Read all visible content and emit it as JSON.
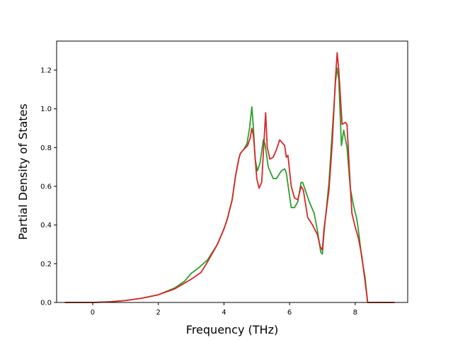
{
  "chart_data": {
    "type": "line",
    "title": "",
    "xlabel": "Frequency (THz)",
    "ylabel": "Partial Density of States",
    "xlim": [
      -1.1,
      9.6
    ],
    "ylim": [
      0.0,
      1.35
    ],
    "xticks": [
      0,
      2,
      4,
      6,
      8
    ],
    "yticks": [
      0.0,
      0.2,
      0.4,
      0.6,
      0.8,
      1.0,
      1.2
    ],
    "xtick_labels": [
      "0",
      "2",
      "4",
      "6",
      "8"
    ],
    "ytick_labels": [
      "0.0",
      "0.2",
      "0.4",
      "0.6",
      "0.8",
      "1.0",
      "1.2"
    ],
    "grid": false,
    "legend": "none",
    "series": [
      {
        "color": "#2ca02c",
        "points": [
          [
            -0.85,
            0.0
          ],
          [
            0.0,
            0.0
          ],
          [
            0.5,
            0.003
          ],
          [
            1.0,
            0.01
          ],
          [
            1.5,
            0.022
          ],
          [
            2.0,
            0.04
          ],
          [
            2.5,
            0.075
          ],
          [
            2.8,
            0.11
          ],
          [
            3.0,
            0.15
          ],
          [
            3.2,
            0.175
          ],
          [
            3.5,
            0.22
          ],
          [
            3.8,
            0.3
          ],
          [
            4.0,
            0.38
          ],
          [
            4.1,
            0.43
          ],
          [
            4.25,
            0.53
          ],
          [
            4.35,
            0.65
          ],
          [
            4.45,
            0.74
          ],
          [
            4.5,
            0.77
          ],
          [
            4.6,
            0.79
          ],
          [
            4.7,
            0.82
          ],
          [
            4.78,
            0.9
          ],
          [
            4.85,
            1.01
          ],
          [
            4.9,
            0.9
          ],
          [
            4.95,
            0.74
          ],
          [
            5.02,
            0.68
          ],
          [
            5.1,
            0.72
          ],
          [
            5.2,
            0.84
          ],
          [
            5.25,
            0.82
          ],
          [
            5.35,
            0.7
          ],
          [
            5.5,
            0.64
          ],
          [
            5.6,
            0.64
          ],
          [
            5.75,
            0.68
          ],
          [
            5.85,
            0.69
          ],
          [
            5.9,
            0.67
          ],
          [
            5.95,
            0.61
          ],
          [
            6.05,
            0.49
          ],
          [
            6.15,
            0.49
          ],
          [
            6.25,
            0.52
          ],
          [
            6.35,
            0.62
          ],
          [
            6.4,
            0.62
          ],
          [
            6.5,
            0.57
          ],
          [
            6.6,
            0.52
          ],
          [
            6.75,
            0.46
          ],
          [
            6.85,
            0.37
          ],
          [
            6.95,
            0.26
          ],
          [
            7.0,
            0.25
          ],
          [
            7.05,
            0.36
          ],
          [
            7.2,
            0.62
          ],
          [
            7.3,
            0.88
          ],
          [
            7.4,
            1.14
          ],
          [
            7.45,
            1.21
          ],
          [
            7.5,
            1.15
          ],
          [
            7.58,
            0.81
          ],
          [
            7.65,
            0.89
          ],
          [
            7.75,
            0.8
          ],
          [
            7.85,
            0.59
          ],
          [
            7.95,
            0.5
          ],
          [
            8.05,
            0.43
          ],
          [
            8.1,
            0.37
          ],
          [
            8.2,
            0.23
          ],
          [
            8.3,
            0.13
          ],
          [
            8.38,
            0.0
          ],
          [
            9.2,
            0.0
          ]
        ]
      },
      {
        "color": "#d62728",
        "points": [
          [
            -0.85,
            0.0
          ],
          [
            0.0,
            0.0
          ],
          [
            0.5,
            0.003
          ],
          [
            1.0,
            0.01
          ],
          [
            1.5,
            0.022
          ],
          [
            2.0,
            0.04
          ],
          [
            2.5,
            0.07
          ],
          [
            3.0,
            0.12
          ],
          [
            3.3,
            0.155
          ],
          [
            3.5,
            0.21
          ],
          [
            3.8,
            0.3
          ],
          [
            4.0,
            0.38
          ],
          [
            4.1,
            0.43
          ],
          [
            4.25,
            0.53
          ],
          [
            4.35,
            0.65
          ],
          [
            4.45,
            0.74
          ],
          [
            4.5,
            0.77
          ],
          [
            4.6,
            0.79
          ],
          [
            4.72,
            0.81
          ],
          [
            4.8,
            0.85
          ],
          [
            4.85,
            0.9
          ],
          [
            4.9,
            0.86
          ],
          [
            4.95,
            0.75
          ],
          [
            5.0,
            0.64
          ],
          [
            5.07,
            0.59
          ],
          [
            5.15,
            0.62
          ],
          [
            5.22,
            0.83
          ],
          [
            5.27,
            0.98
          ],
          [
            5.32,
            0.8
          ],
          [
            5.4,
            0.74
          ],
          [
            5.5,
            0.75
          ],
          [
            5.6,
            0.79
          ],
          [
            5.7,
            0.84
          ],
          [
            5.8,
            0.82
          ],
          [
            5.85,
            0.81
          ],
          [
            5.9,
            0.75
          ],
          [
            5.95,
            0.76
          ],
          [
            6.05,
            0.6
          ],
          [
            6.15,
            0.54
          ],
          [
            6.25,
            0.53
          ],
          [
            6.35,
            0.6
          ],
          [
            6.42,
            0.58
          ],
          [
            6.55,
            0.44
          ],
          [
            6.7,
            0.4
          ],
          [
            6.85,
            0.35
          ],
          [
            6.93,
            0.29
          ],
          [
            7.0,
            0.27
          ],
          [
            7.05,
            0.38
          ],
          [
            7.2,
            0.58
          ],
          [
            7.3,
            0.82
          ],
          [
            7.4,
            1.16
          ],
          [
            7.45,
            1.29
          ],
          [
            7.5,
            1.2
          ],
          [
            7.6,
            0.92
          ],
          [
            7.7,
            0.93
          ],
          [
            7.75,
            0.92
          ],
          [
            7.85,
            0.6
          ],
          [
            7.9,
            0.46
          ],
          [
            8.0,
            0.39
          ],
          [
            8.1,
            0.33
          ],
          [
            8.2,
            0.24
          ],
          [
            8.3,
            0.11
          ],
          [
            8.38,
            0.0
          ],
          [
            9.2,
            0.0
          ]
        ]
      }
    ]
  }
}
